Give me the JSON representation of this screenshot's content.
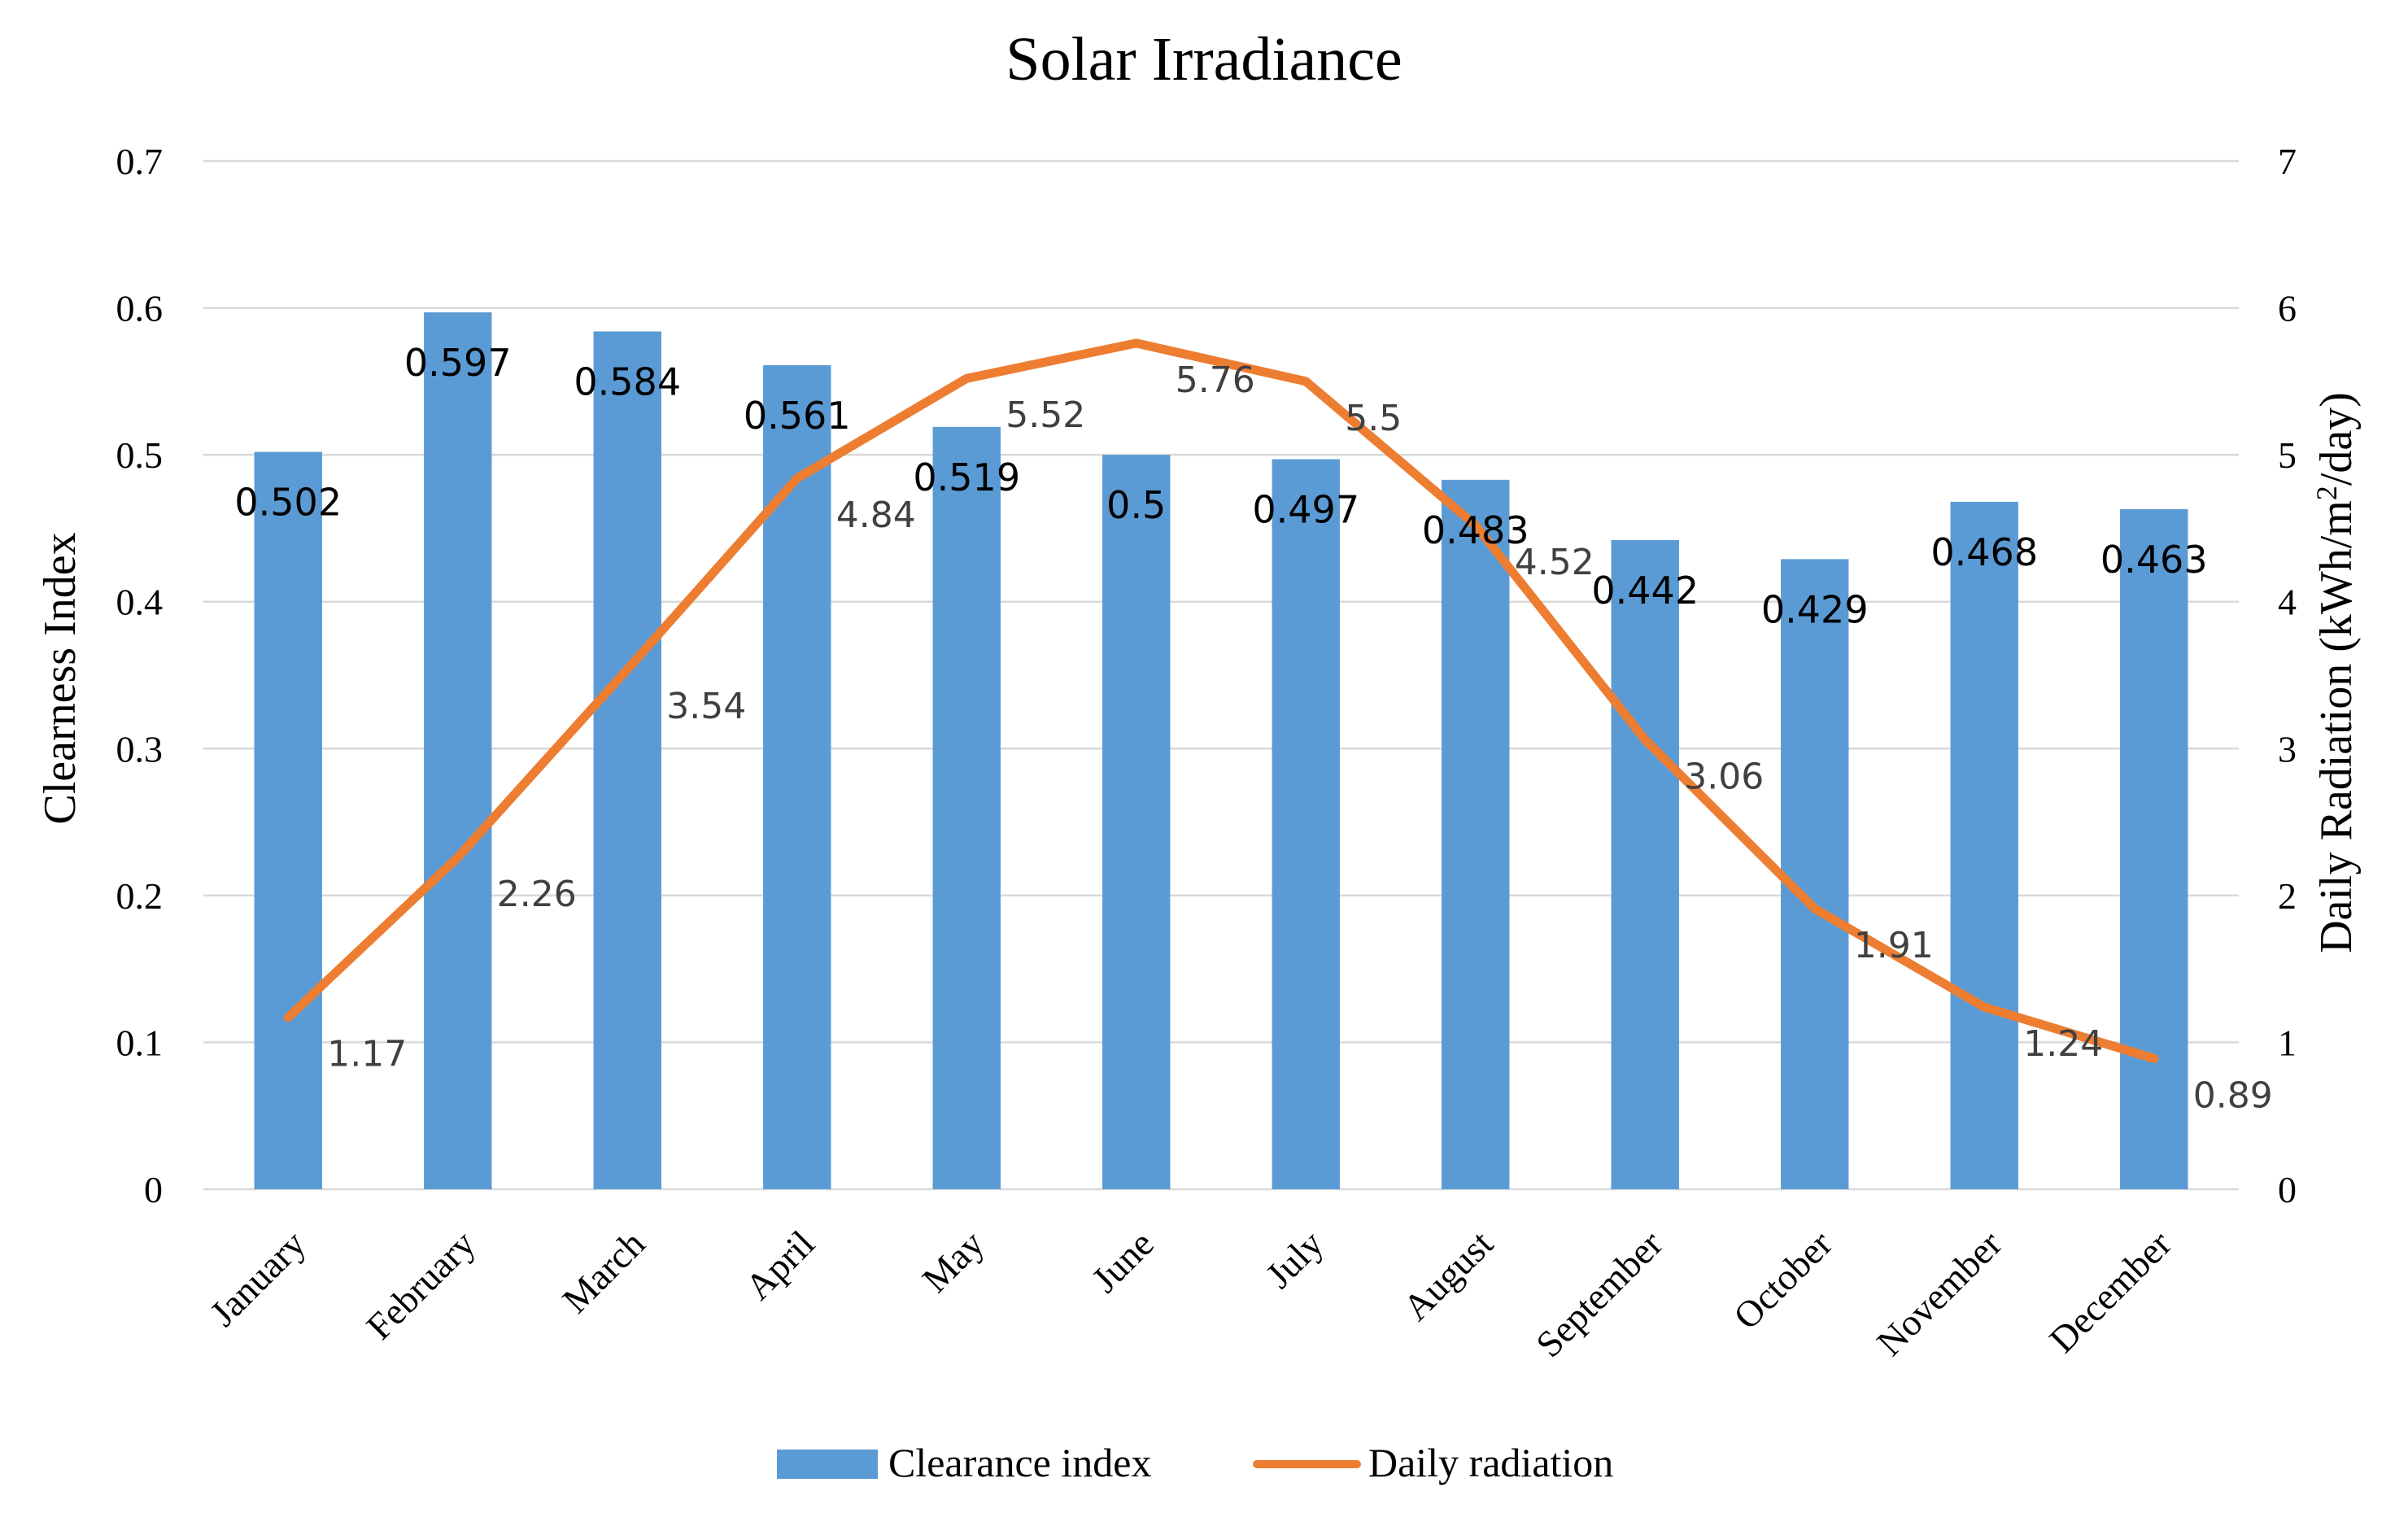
{
  "chart_data": {
    "type": "bar",
    "title": "Solar Irradiance",
    "categories": [
      "January",
      "February",
      "March",
      "April",
      "May",
      "June",
      "July",
      "August",
      "September",
      "October",
      "November",
      "December"
    ],
    "series": [
      {
        "name": "Clearance index",
        "type": "bar",
        "axis": "left",
        "values": [
          0.502,
          0.597,
          0.584,
          0.561,
          0.519,
          0.5,
          0.497,
          0.483,
          0.442,
          0.429,
          0.468,
          0.463
        ],
        "labels": [
          "0.502",
          "0.597",
          "0.584",
          "0.561",
          "0.519",
          "0.5",
          "0.497",
          "0.483",
          "0.442",
          "0.429",
          "0.468",
          "0.463"
        ],
        "color": "#5b9bd5"
      },
      {
        "name": "Daily radiation",
        "type": "line",
        "axis": "right",
        "values": [
          1.17,
          2.26,
          3.54,
          4.84,
          5.52,
          5.76,
          5.5,
          4.52,
          3.06,
          1.91,
          1.24,
          0.89
        ],
        "labels": [
          "1.17",
          "2.26",
          "3.54",
          "4.84",
          "5.52",
          "5.76",
          "5.5",
          "4.52",
          "3.06",
          "1.91",
          "1.24",
          "0.89"
        ],
        "color": "#ed7d31"
      }
    ],
    "y_left": {
      "label": "Clearness Index",
      "ylim": [
        0,
        0.7
      ],
      "ticks": [
        0,
        0.1,
        0.2,
        0.3,
        0.4,
        0.5,
        0.6,
        0.7
      ],
      "tick_labels": [
        "0",
        "0.1",
        "0.2",
        "0.3",
        "0.4",
        "0.5",
        "0.6",
        "0.7"
      ]
    },
    "y_right": {
      "label": "Daily Radiation (kWh/m²/day)",
      "label_parts": [
        "Daily Radiation (kWh/m",
        "2",
        "/day)"
      ],
      "ylim": [
        0,
        7
      ],
      "ticks": [
        0,
        1,
        2,
        3,
        4,
        5,
        6,
        7
      ],
      "tick_labels": [
        "0",
        "1",
        "2",
        "3",
        "4",
        "5",
        "6",
        "7"
      ]
    },
    "grid": true,
    "legend": {
      "position": "bottom",
      "entries": [
        "Clearance index",
        "Daily radiation"
      ]
    }
  }
}
